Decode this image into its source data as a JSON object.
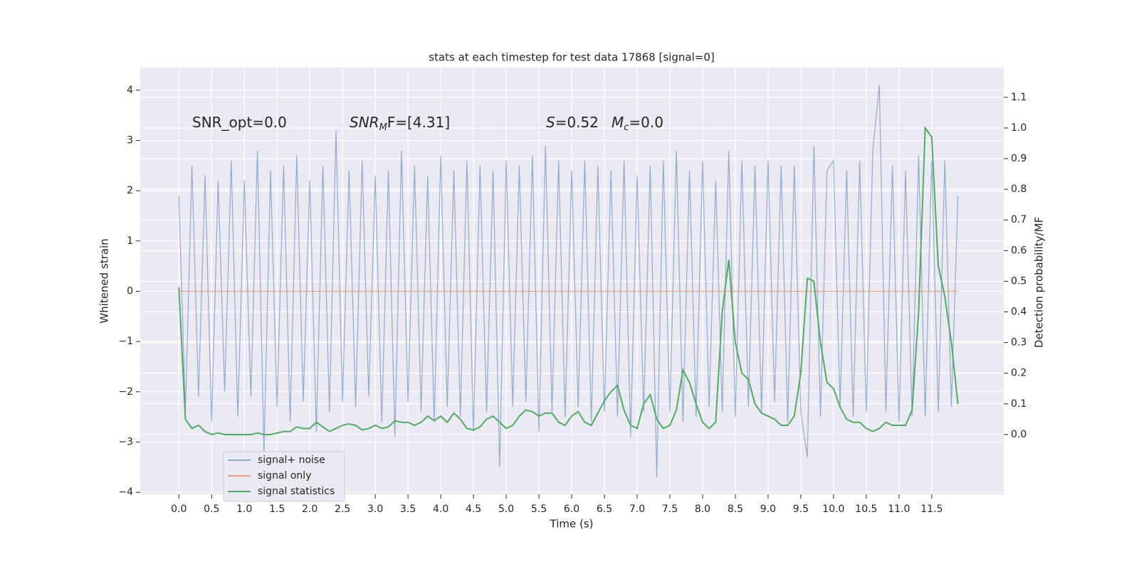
{
  "chart_data": {
    "type": "line",
    "title": "stats at each timestep for test data 17868 [signal=0]",
    "xlabel": "Time (s)",
    "ylabel": "Whitened strain",
    "y2label": "Detection probability/MF",
    "annotations": [
      {
        "base": "SNR_opt=0.0"
      },
      {
        "base": "SNR",
        "sub": "M",
        "rest": "F=[4.31]"
      },
      {
        "base": "S",
        "rest": "=0.52"
      },
      {
        "base": "M",
        "sub": "c",
        "rest": "=0.0"
      }
    ],
    "x": [
      0,
      0.1,
      0.2,
      0.3,
      0.4,
      0.5,
      0.6,
      0.7,
      0.8,
      0.9,
      1,
      1.1,
      1.2,
      1.3,
      1.4,
      1.5,
      1.6,
      1.7,
      1.8,
      1.9,
      2,
      2.1,
      2.2,
      2.3,
      2.4,
      2.5,
      2.6,
      2.7,
      2.8,
      2.9,
      3,
      3.1,
      3.2,
      3.3,
      3.4,
      3.5,
      3.6,
      3.7,
      3.8,
      3.9,
      4,
      4.1,
      4.2,
      4.3,
      4.4,
      4.5,
      4.6,
      4.7,
      4.8,
      4.9,
      5,
      5.1,
      5.2,
      5.3,
      5.4,
      5.5,
      5.6,
      5.7,
      5.8,
      5.9,
      6,
      6.1,
      6.2,
      6.3,
      6.4,
      6.5,
      6.6,
      6.7,
      6.8,
      6.9,
      7,
      7.1,
      7.2,
      7.3,
      7.4,
      7.5,
      7.6,
      7.7,
      7.8,
      7.9,
      8,
      8.1,
      8.2,
      8.3,
      8.4,
      8.5,
      8.6,
      8.7,
      8.8,
      8.9,
      9,
      9.1,
      9.2,
      9.3,
      9.4,
      9.5,
      9.6,
      9.7,
      9.8,
      9.9,
      10,
      10.1,
      10.2,
      10.3,
      10.4,
      10.5,
      10.6,
      10.7,
      10.8,
      10.9,
      11,
      11.1,
      11.2,
      11.3,
      11.4,
      11.5,
      11.6,
      11.7,
      11.8,
      11.9
    ],
    "series": [
      {
        "name": "signal+ noise",
        "color": "#4c72b0",
        "values": [
          1.9,
          -2.4,
          2.5,
          -2.1,
          2.3,
          -2.6,
          2.2,
          -2.0,
          2.6,
          -2.5,
          2.2,
          -2.1,
          2.8,
          -3.2,
          2.4,
          -2.3,
          2.5,
          -2.6,
          2.7,
          -2.2,
          2.2,
          -2.8,
          2.5,
          -2.4,
          3.2,
          -2.2,
          2.4,
          -2.3,
          2.6,
          -2.1,
          2.3,
          -2.6,
          2.4,
          -2.9,
          2.8,
          -2.2,
          2.5,
          -2.4,
          2.3,
          -2.6,
          2.7,
          -2.3,
          2.4,
          -2.5,
          2.6,
          -2.8,
          2.5,
          -2.4,
          2.4,
          -3.5,
          2.6,
          -2.3,
          2.5,
          -2.2,
          2.7,
          -2.8,
          2.9,
          -2.4,
          2.6,
          -2.5,
          2.4,
          -2.3,
          2.6,
          -2.6,
          2.5,
          -2.4,
          2.4,
          -2.5,
          2.6,
          -2.9,
          2.3,
          -2.4,
          2.5,
          -3.7,
          2.6,
          -2.4,
          2.8,
          -2.6,
          2.4,
          -2.5,
          2.6,
          -2.3,
          2.2,
          -2.4,
          2.8,
          -2.5,
          2.6,
          -2.3,
          2.5,
          -2.4,
          2.6,
          -2.2,
          2.5,
          -2.6,
          2.5,
          -2.4,
          -3.3,
          2.9,
          -2.5,
          2.4,
          2.6,
          -2.3,
          2.4,
          -2.5,
          2.6,
          -2.4,
          2.8,
          4.1,
          -2.4,
          2.5,
          -2.6,
          2.4,
          -2.5,
          2.7,
          -2.5,
          2.6,
          -2.4,
          2.6,
          -2.3,
          1.9
        ]
      },
      {
        "name": "signal only",
        "color": "#dd8452",
        "values": [
          0,
          0,
          0,
          0,
          0,
          0,
          0,
          0,
          0,
          0,
          0,
          0,
          0,
          0,
          0,
          0,
          0,
          0,
          0,
          0,
          0,
          0,
          0,
          0,
          0,
          0,
          0,
          0,
          0,
          0,
          0,
          0,
          0,
          0,
          0,
          0,
          0,
          0,
          0,
          0,
          0,
          0,
          0,
          0,
          0,
          0,
          0,
          0,
          0,
          0,
          0,
          0,
          0,
          0,
          0,
          0,
          0,
          0,
          0,
          0,
          0,
          0,
          0,
          0,
          0,
          0,
          0,
          0,
          0,
          0,
          0,
          0,
          0,
          0,
          0,
          0,
          0,
          0,
          0,
          0,
          0,
          0,
          0,
          0,
          0,
          0,
          0,
          0,
          0,
          0,
          0,
          0,
          0,
          0,
          0,
          0,
          0,
          0,
          0,
          0,
          0,
          0,
          0,
          0,
          0,
          0,
          0,
          0,
          0,
          0,
          0,
          0,
          0,
          0,
          0,
          0,
          0,
          0,
          0,
          0
        ]
      },
      {
        "name": "signal statistics",
        "color": "#55a868",
        "axis": "y2",
        "values": [
          0.48,
          0.05,
          0.02,
          0.03,
          0.01,
          0.0,
          0.005,
          0.0,
          0.0,
          0.0,
          0.0,
          0.0,
          0.005,
          0.0,
          0.0,
          0.005,
          0.01,
          0.01,
          0.025,
          0.02,
          0.02,
          0.04,
          0.025,
          0.01,
          0.02,
          0.03,
          0.035,
          0.03,
          0.015,
          0.02,
          0.03,
          0.02,
          0.025,
          0.045,
          0.04,
          0.04,
          0.03,
          0.04,
          0.06,
          0.045,
          0.06,
          0.04,
          0.07,
          0.05,
          0.02,
          0.015,
          0.025,
          0.05,
          0.06,
          0.04,
          0.02,
          0.03,
          0.06,
          0.08,
          0.075,
          0.06,
          0.07,
          0.07,
          0.04,
          0.03,
          0.06,
          0.075,
          0.04,
          0.03,
          0.07,
          0.11,
          0.14,
          0.16,
          0.08,
          0.03,
          0.02,
          0.1,
          0.13,
          0.05,
          0.02,
          0.03,
          0.08,
          0.21,
          0.17,
          0.1,
          0.04,
          0.02,
          0.04,
          0.4,
          0.57,
          0.3,
          0.2,
          0.18,
          0.1,
          0.07,
          0.06,
          0.05,
          0.03,
          0.03,
          0.06,
          0.2,
          0.51,
          0.5,
          0.3,
          0.17,
          0.15,
          0.09,
          0.05,
          0.04,
          0.04,
          0.02,
          0.01,
          0.02,
          0.04,
          0.03,
          0.03,
          0.03,
          0.08,
          0.4,
          1.0,
          0.97,
          0.55,
          0.45,
          0.3,
          0.1
        ]
      }
    ],
    "xlim": [
      -0.59,
      12.6
    ],
    "ylim": [
      -4.04,
      4.45
    ],
    "y2lim": [
      -0.195,
      1.197
    ],
    "xticks": [
      {
        "value": 0,
        "label": "0.0"
      },
      {
        "value": 0.5,
        "label": "0.5"
      },
      {
        "value": 1,
        "label": "1.0"
      },
      {
        "value": 1.5,
        "label": "1.5"
      },
      {
        "value": 2,
        "label": "2.0"
      },
      {
        "value": 2.5,
        "label": "2.5"
      },
      {
        "value": 3,
        "label": "3.0"
      },
      {
        "value": 3.5,
        "label": "3.5"
      },
      {
        "value": 4,
        "label": "4.0"
      },
      {
        "value": 4.5,
        "label": "4.5"
      },
      {
        "value": 5,
        "label": "5.0"
      },
      {
        "value": 5.5,
        "label": "5.5"
      },
      {
        "value": 6,
        "label": "6.0"
      },
      {
        "value": 6.5,
        "label": "6.5"
      },
      {
        "value": 7,
        "label": "7.0"
      },
      {
        "value": 7.5,
        "label": "7.5"
      },
      {
        "value": 8,
        "label": "8.0"
      },
      {
        "value": 8.5,
        "label": "8.5"
      },
      {
        "value": 9,
        "label": "9.0"
      },
      {
        "value": 9.5,
        "label": "9.5"
      },
      {
        "value": 10,
        "label": "10.0"
      },
      {
        "value": 10.5,
        "label": "10.5"
      },
      {
        "value": 11,
        "label": "11.0"
      },
      {
        "value": 11.5,
        "label": "11.5"
      }
    ],
    "yticks": [
      {
        "value": -4,
        "label": "−4"
      },
      {
        "value": -3,
        "label": "−3"
      },
      {
        "value": -2,
        "label": "−2"
      },
      {
        "value": -1,
        "label": "−1"
      },
      0,
      1,
      2,
      3,
      4
    ],
    "y2ticks": [
      {
        "value": 0,
        "label": "0.0"
      },
      {
        "value": 0.1,
        "label": "0.1"
      },
      {
        "value": 0.2,
        "label": "0.2"
      },
      {
        "value": 0.3,
        "label": "0.3"
      },
      {
        "value": 0.4,
        "label": "0.4"
      },
      {
        "value": 0.5,
        "label": "0.5"
      },
      {
        "value": 0.6,
        "label": "0.6"
      },
      {
        "value": 0.7,
        "label": "0.7"
      },
      {
        "value": 0.8,
        "label": "0.8"
      },
      {
        "value": 0.9,
        "label": "0.9"
      },
      {
        "value": 1,
        "label": "1.0"
      },
      {
        "value": 1.1,
        "label": "1.1"
      }
    ],
    "grid": true,
    "legend": "lower left",
    "background": "#eaeaf2"
  }
}
